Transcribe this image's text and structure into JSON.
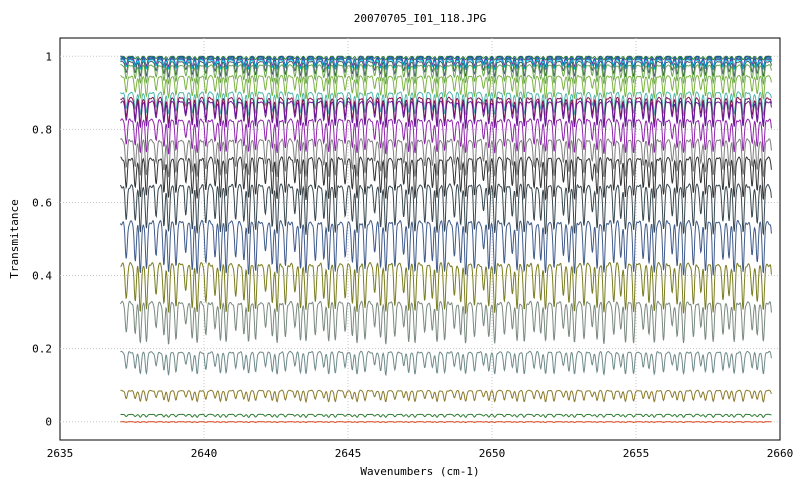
{
  "chart_data": {
    "type": "line",
    "title": "20070705_I01_118.JPG",
    "xlabel": "Wavenumbers (cm-1)",
    "ylabel": "Transmitance",
    "xlim": [
      2635,
      2660
    ],
    "ylim": [
      -0.05,
      1.05
    ],
    "xticks": [
      "2635",
      "2640",
      "2645",
      "2650",
      "2655",
      "2660"
    ],
    "yticks": [
      "0",
      "0.2",
      "0.4",
      "0.6",
      "0.8",
      "1"
    ],
    "x_range": [
      2637.1,
      2659.7
    ],
    "grid": true,
    "legend": "none",
    "series": [
      {
        "color": "#2e7d32",
        "baseline": 1.0,
        "depth": 0.01
      },
      {
        "color": "#1f3fbf",
        "baseline": 0.998,
        "depth": 0.03
      },
      {
        "color": "#00897b",
        "baseline": 0.995,
        "depth": 0.03
      },
      {
        "color": "#7b1fa2",
        "baseline": 0.992,
        "depth": 0.02
      },
      {
        "color": "#00bcd4",
        "baseline": 0.99,
        "depth": 0.025
      },
      {
        "color": "#455a64",
        "baseline": 0.985,
        "depth": 0.04
      },
      {
        "color": "#6aa84f",
        "baseline": 0.975,
        "depth": 0.05
      },
      {
        "color": "#7cb342",
        "baseline": 0.945,
        "depth": 0.06
      },
      {
        "color": "#4db6ac",
        "baseline": 0.9,
        "depth": 0.06
      },
      {
        "color": "#880e4f",
        "baseline": 0.885,
        "depth": 0.07
      },
      {
        "color": "#6a1b9a",
        "baseline": 0.875,
        "depth": 0.07
      },
      {
        "color": "#8e24aa",
        "baseline": 0.825,
        "depth": 0.09
      },
      {
        "color": "#7f7f7f",
        "baseline": 0.77,
        "depth": 0.1
      },
      {
        "color": "#333333",
        "baseline": 0.72,
        "depth": 0.11
      },
      {
        "color": "#37474f",
        "baseline": 0.645,
        "depth": 0.13
      },
      {
        "color": "#3f5a8a",
        "baseline": 0.545,
        "depth": 0.14
      },
      {
        "color": "#7a7d20",
        "baseline": 0.43,
        "depth": 0.13
      },
      {
        "color": "#7a8a80",
        "baseline": 0.325,
        "depth": 0.11
      },
      {
        "color": "#6f8a8a",
        "baseline": 0.19,
        "depth": 0.06
      },
      {
        "color": "#8a7a2a",
        "baseline": 0.085,
        "depth": 0.03
      },
      {
        "color": "#2e7d32",
        "baseline": 0.02,
        "depth": 0.008
      },
      {
        "color": "#d84315",
        "baseline": 0.0,
        "depth": 0.002
      }
    ]
  }
}
